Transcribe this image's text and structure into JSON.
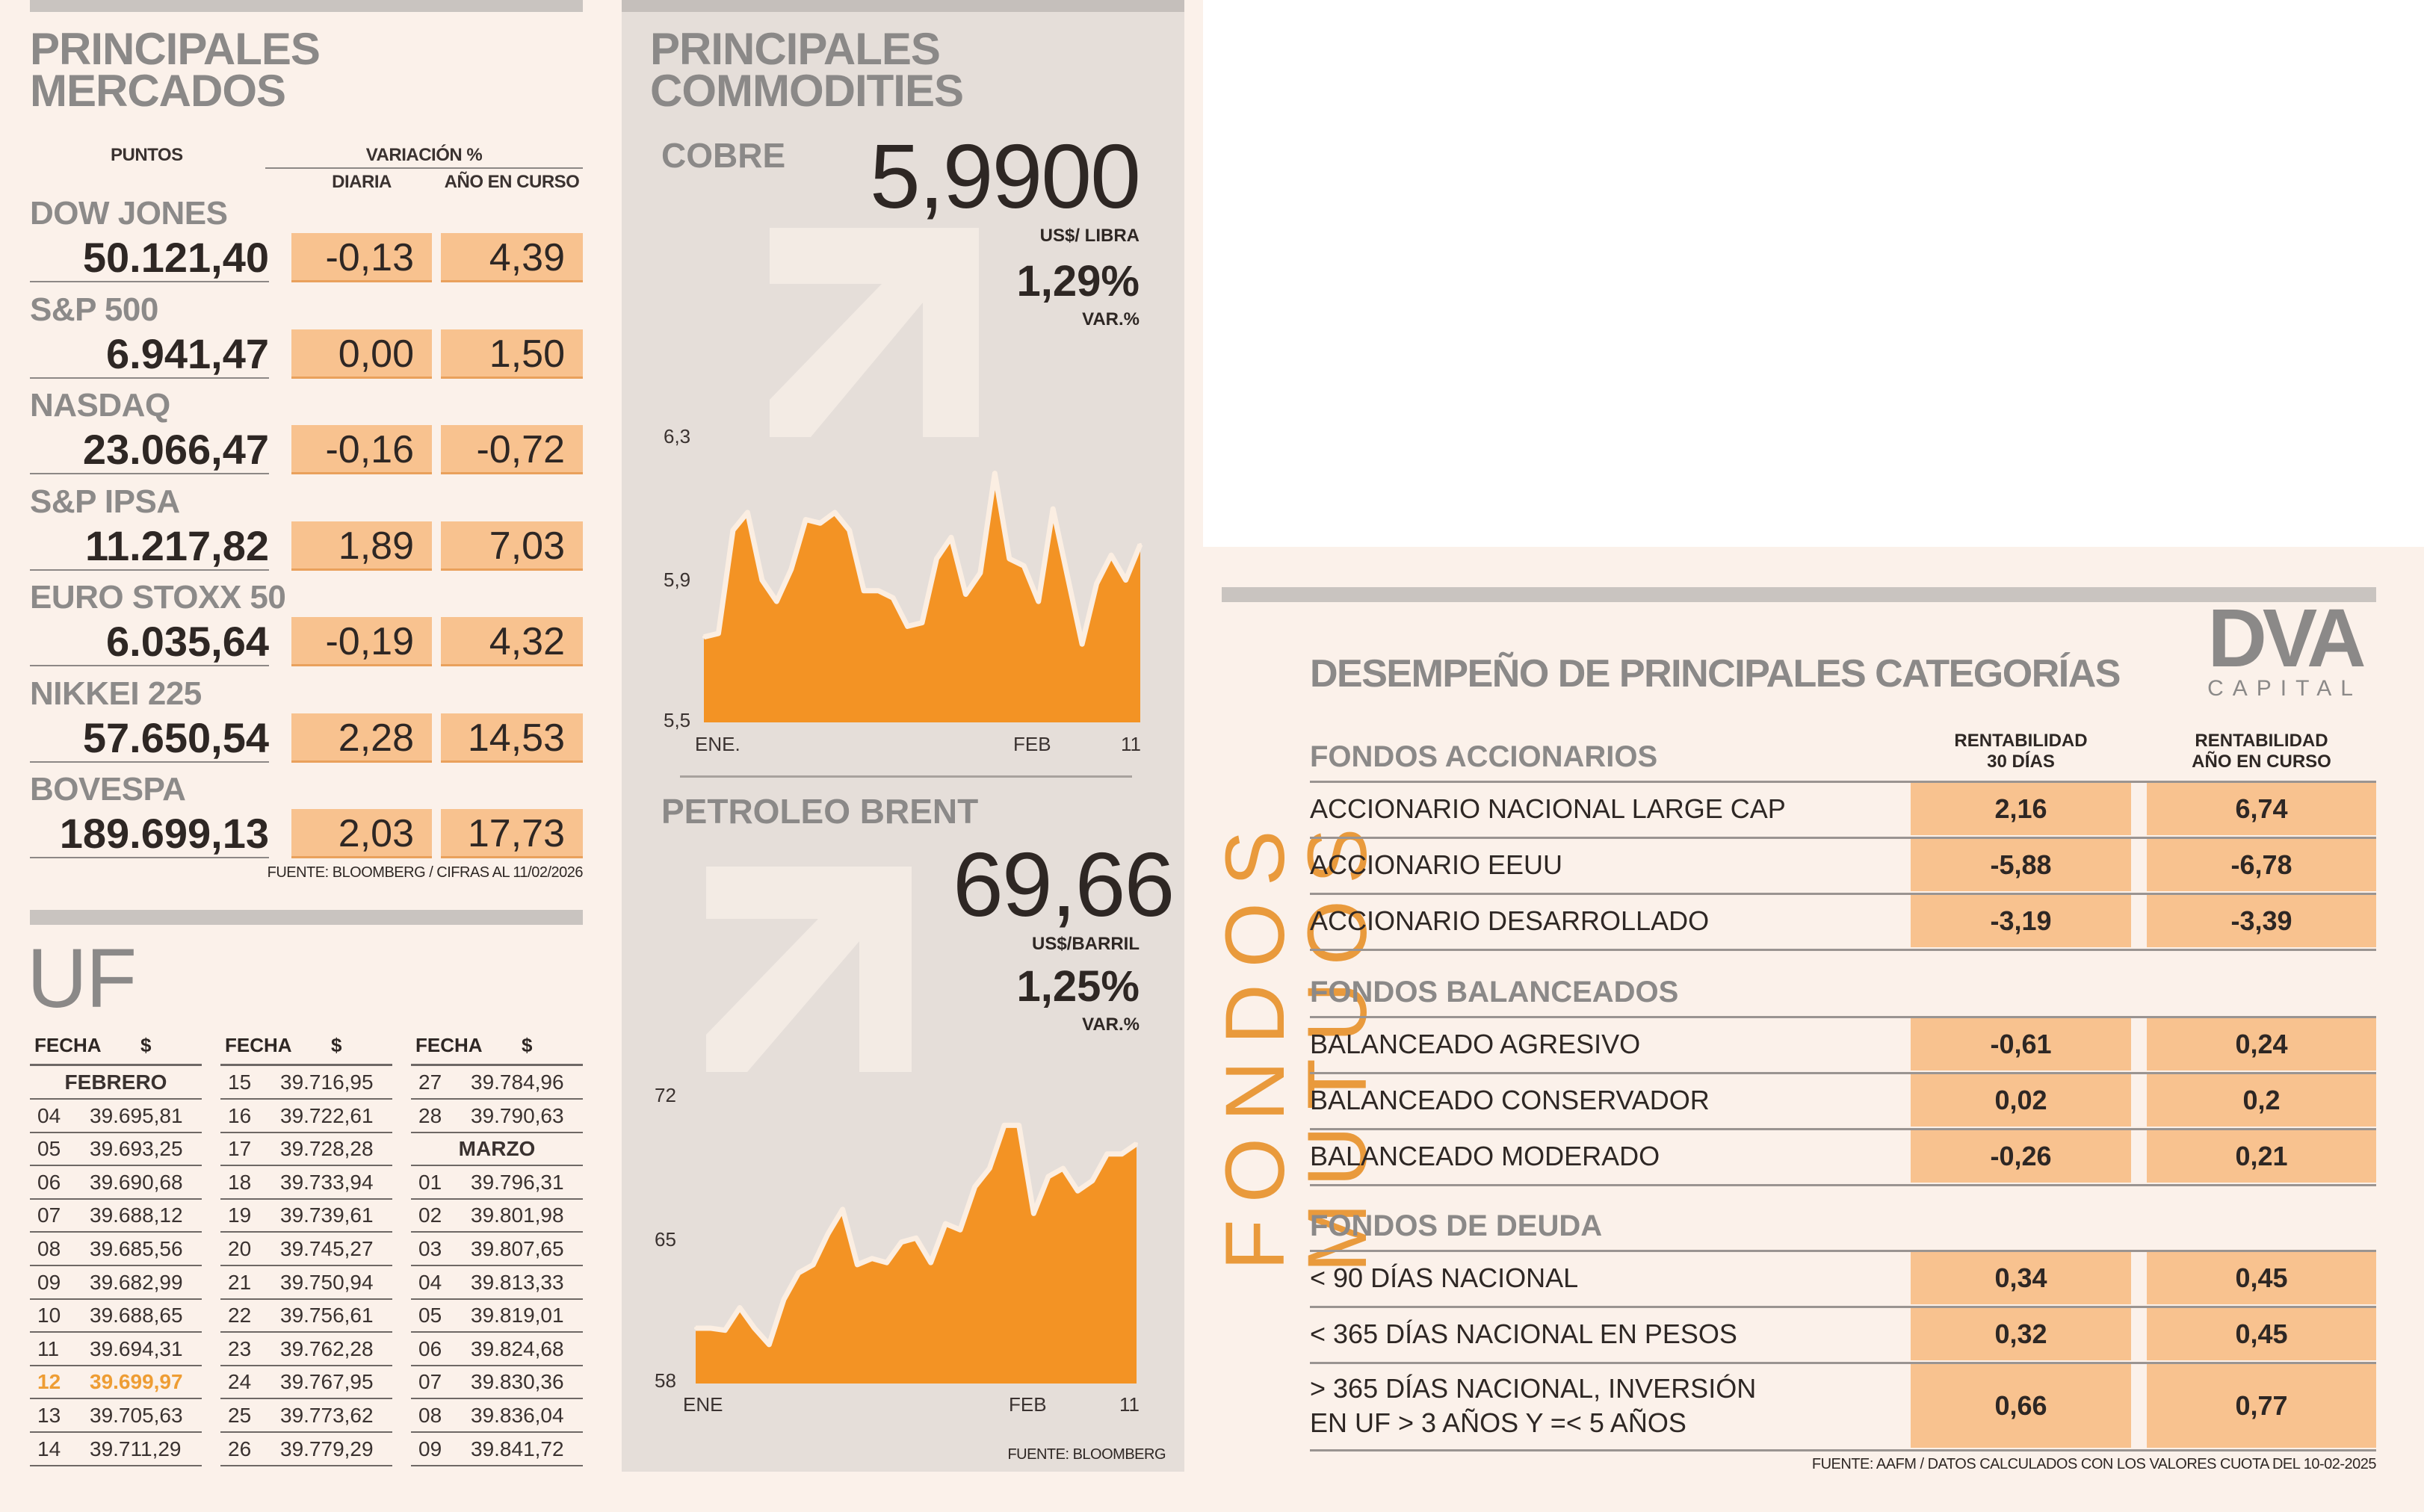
{
  "mercados": {
    "title_line1": "PRINCIPALES",
    "title_line2": "MERCADOS",
    "header_points": "PUNTOS",
    "header_variation": "VARIACIÓN %",
    "header_daily": "DIARIA",
    "header_ytd": "AÑO EN CURSO",
    "rows": [
      {
        "name": "DOW JONES",
        "points": "50.121,40",
        "daily": "-0,13",
        "ytd": "4,39"
      },
      {
        "name": "S&P 500",
        "points": "6.941,47",
        "daily": "0,00",
        "ytd": "1,50"
      },
      {
        "name": "NASDAQ",
        "points": "23.066,47",
        "daily": "-0,16",
        "ytd": "-0,72"
      },
      {
        "name": "S&P IPSA",
        "points": "11.217,82",
        "daily": "1,89",
        "ytd": "7,03"
      },
      {
        "name": "EURO STOXX 50",
        "points": "6.035,64",
        "daily": "-0,19",
        "ytd": "4,32"
      },
      {
        "name": "NIKKEI 225",
        "points": "57.650,54",
        "daily": "2,28",
        "ytd": "14,53"
      },
      {
        "name": "BOVESPA",
        "points": "189.699,13",
        "daily": "2,03",
        "ytd": "17,73"
      }
    ],
    "source": "FUENTE: BLOOMBERG  / CIFRAS AL 11/02/2026"
  },
  "uf": {
    "title": "UF",
    "header_date": "FECHA",
    "header_value": "$",
    "columns": [
      [
        {
          "month": "FEBRERO"
        },
        {
          "day": "04",
          "value": "39.695,81"
        },
        {
          "day": "05",
          "value": "39.693,25"
        },
        {
          "day": "06",
          "value": "39.690,68"
        },
        {
          "day": "07",
          "value": "39.688,12"
        },
        {
          "day": "08",
          "value": "39.685,56"
        },
        {
          "day": "09",
          "value": "39.682,99"
        },
        {
          "day": "10",
          "value": "39.688,65"
        },
        {
          "day": "11",
          "value": "39.694,31"
        },
        {
          "day": "12",
          "value": "39.699,97",
          "highlight": true
        },
        {
          "day": "13",
          "value": "39.705,63"
        },
        {
          "day": "14",
          "value": "39.711,29"
        }
      ],
      [
        {
          "day": "15",
          "value": "39.716,95"
        },
        {
          "day": "16",
          "value": "39.722,61"
        },
        {
          "day": "17",
          "value": "39.728,28"
        },
        {
          "day": "18",
          "value": "39.733,94"
        },
        {
          "day": "19",
          "value": "39.739,61"
        },
        {
          "day": "20",
          "value": "39.745,27"
        },
        {
          "day": "21",
          "value": "39.750,94"
        },
        {
          "day": "22",
          "value": "39.756,61"
        },
        {
          "day": "23",
          "value": "39.762,28"
        },
        {
          "day": "24",
          "value": "39.767,95"
        },
        {
          "day": "25",
          "value": "39.773,62"
        },
        {
          "day": "26",
          "value": "39.779,29"
        }
      ],
      [
        {
          "day": "27",
          "value": "39.784,96"
        },
        {
          "day": "28",
          "value": "39.790,63"
        },
        {
          "month": "MARZO"
        },
        {
          "day": "01",
          "value": "39.796,31"
        },
        {
          "day": "02",
          "value": "39.801,98"
        },
        {
          "day": "03",
          "value": "39.807,65"
        },
        {
          "day": "04",
          "value": "39.813,33"
        },
        {
          "day": "05",
          "value": "39.819,01"
        },
        {
          "day": "06",
          "value": "39.824,68"
        },
        {
          "day": "07",
          "value": "39.830,36"
        },
        {
          "day": "08",
          "value": "39.836,04"
        },
        {
          "day": "09",
          "value": "39.841,72"
        }
      ]
    ]
  },
  "commodities": {
    "title_line1": "PRINCIPALES",
    "title_line2": "COMMODITIES",
    "copper": {
      "name": "COBRE",
      "price": "5,9900",
      "unit": "US$/ LIBRA",
      "change": "1,29%",
      "change_label": "VAR.%"
    },
    "brent": {
      "name": "PETROLEO BRENT",
      "price": "69,66",
      "unit": "US$/BARRIL",
      "change": "1,25%",
      "change_label": "VAR.%"
    },
    "source": "FUENTE: BLOOMBERG"
  },
  "chart_data": [
    {
      "type": "area",
      "title": "COBRE",
      "ylabel": "US$/ LIBRA",
      "ylim": [
        5.5,
        6.3
      ],
      "yticks": [
        "6,3",
        "5,9",
        "5,5"
      ],
      "xticks": [
        "ENE.",
        "FEB",
        "11"
      ],
      "grid": false,
      "values": [
        5.74,
        5.75,
        6.04,
        6.09,
        5.9,
        5.84,
        5.93,
        6.07,
        6.06,
        6.09,
        6.04,
        5.87,
        5.87,
        5.85,
        5.77,
        5.78,
        5.96,
        6.02,
        5.86,
        5.92,
        6.2,
        5.96,
        5.94,
        5.84,
        6.1,
        5.91,
        5.72,
        5.89,
        5.97,
        5.9,
        6.0
      ]
    },
    {
      "type": "area",
      "title": "PETROLEO BRENT",
      "ylabel": "US$/BARRIL",
      "ylim": [
        58,
        72
      ],
      "yticks": [
        "72",
        "65",
        "58"
      ],
      "xticks": [
        "ENE",
        "FEB",
        "11"
      ],
      "grid": false,
      "values": [
        60.7,
        60.7,
        60.6,
        61.7,
        60.7,
        59.9,
        62.1,
        63.4,
        63.8,
        65.3,
        66.5,
        63.8,
        64.1,
        63.9,
        64.9,
        65.1,
        63.9,
        65.8,
        65.5,
        67.6,
        68.5,
        70.6,
        70.6,
        66.3,
        68.1,
        68.5,
        67.4,
        67.9,
        69.2,
        69.2,
        69.7
      ]
    }
  ],
  "fondos": {
    "side_title": "FONDOS MUTUOS",
    "title": "DESEMPEÑO DE PRINCIPALES CATEGORÍAS",
    "logo_main": "DVA",
    "logo_sub": "CAPITAL",
    "col1_header_l1": "RENTABILIDAD",
    "col1_header_l2": "30 DÍAS",
    "col2_header_l1": "RENTABILIDAD",
    "col2_header_l2": "AÑO EN CURSO",
    "sections": [
      {
        "title": "FONDOS ACCIONARIOS",
        "rows": [
          {
            "label": "ACCIONARIO NACIONAL LARGE CAP",
            "d30": "2,16",
            "ytd": "6,74"
          },
          {
            "label": "ACCIONARIO EEUU",
            "d30": "-5,88",
            "ytd": "-6,78"
          },
          {
            "label": "ACCIONARIO DESARROLLADO",
            "d30": "-3,19",
            "ytd": "-3,39"
          }
        ]
      },
      {
        "title": "FONDOS BALANCEADOS",
        "rows": [
          {
            "label": "BALANCEADO AGRESIVO",
            "d30": "-0,61",
            "ytd": "0,24"
          },
          {
            "label": "BALANCEADO CONSERVADOR",
            "d30": "0,02",
            "ytd": "0,2"
          },
          {
            "label": "BALANCEADO MODERADO",
            "d30": "-0,26",
            "ytd": "0,21"
          }
        ]
      },
      {
        "title": "FONDOS DE DEUDA",
        "rows": [
          {
            "label": "< 90 DÍAS NACIONAL",
            "d30": "0,34",
            "ytd": "0,45"
          },
          {
            "label": "< 365 DÍAS NACIONAL EN PESOS",
            "d30": "0,32",
            "ytd": "0,45"
          },
          {
            "label": "> 365 DÍAS NACIONAL, INVERSIÓN",
            "label2": "EN UF > 3 AÑOS Y =< 5 AÑOS",
            "d30": "0,66",
            "ytd": "0,77"
          }
        ]
      }
    ],
    "source": "FUENTE: AAFM / DATOS CALCULADOS CON LOS VALORES CUOTA DEL 10-02-2025"
  },
  "colors": {
    "accent": "#f39324",
    "cell": "#f8c28f",
    "highlight": "#ee9d34",
    "line": "#fbeee2"
  }
}
